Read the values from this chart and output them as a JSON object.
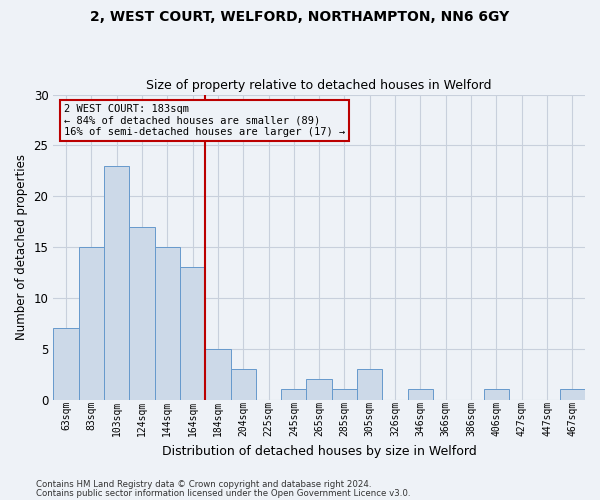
{
  "title1": "2, WEST COURT, WELFORD, NORTHAMPTON, NN6 6GY",
  "title2": "Size of property relative to detached houses in Welford",
  "xlabel": "Distribution of detached houses by size in Welford",
  "ylabel": "Number of detached properties",
  "footer1": "Contains HM Land Registry data © Crown copyright and database right 2024.",
  "footer2": "Contains public sector information licensed under the Open Government Licence v3.0.",
  "annotation_line1": "2 WEST COURT: 183sqm",
  "annotation_line2": "← 84% of detached houses are smaller (89)",
  "annotation_line3": "16% of semi-detached houses are larger (17) →",
  "categories": [
    "63sqm",
    "83sqm",
    "103sqm",
    "124sqm",
    "144sqm",
    "164sqm",
    "184sqm",
    "204sqm",
    "225sqm",
    "245sqm",
    "265sqm",
    "285sqm",
    "305sqm",
    "326sqm",
    "346sqm",
    "366sqm",
    "386sqm",
    "406sqm",
    "427sqm",
    "447sqm",
    "467sqm"
  ],
  "bar_values_full": [
    7,
    15,
    23,
    17,
    15,
    13,
    5,
    3,
    0,
    1,
    2,
    1,
    3,
    0,
    1,
    0,
    0,
    1,
    0,
    0,
    1
  ],
  "bar_color": "#ccd9e8",
  "bar_edge_color": "#6699cc",
  "vline_index": 6,
  "vline_color": "#bb0000",
  "annotation_box_color": "#bb0000",
  "grid_color": "#c8d0dc",
  "background_color": "#eef2f7",
  "ylim": [
    0,
    30
  ],
  "yticks": [
    0,
    5,
    10,
    15,
    20,
    25,
    30
  ]
}
